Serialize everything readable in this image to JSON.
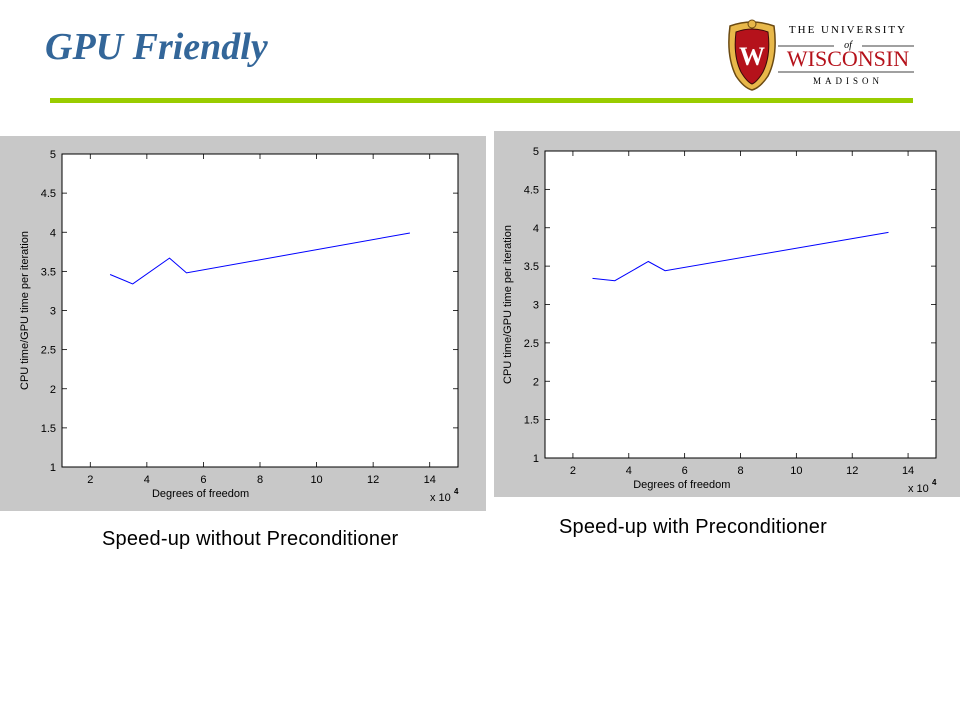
{
  "slide": {
    "title": "GPU Friendly",
    "logo": {
      "line1": "THE UNIVERSITY",
      "line2": "of",
      "line3": "WISCONSIN",
      "line4": "MADISON",
      "shield_letter": "W"
    },
    "colors": {
      "title": "#336699",
      "rule": "#99cc00",
      "crest": "#b5121b",
      "line": "#0000ff"
    }
  },
  "captions": {
    "left": "Speed-up without Preconditioner",
    "right": "Speed-up with Preconditioner"
  },
  "chart_data": [
    {
      "type": "line",
      "xlabel": "Degrees of freedom",
      "ylabel": "CPU time/GPU time per iteration",
      "x_multiplier": "x 10",
      "x_multiplier_exp": "4",
      "xlim": [
        1,
        15
      ],
      "ylim": [
        1,
        5
      ],
      "xticks": [
        2,
        4,
        6,
        8,
        10,
        12,
        14
      ],
      "yticks": [
        1,
        1.5,
        2,
        2.5,
        3,
        3.5,
        4,
        4.5,
        5
      ],
      "ytick_labels": [
        "1",
        "1.5",
        "2",
        "2.5",
        "3",
        "3.5",
        "4",
        "4.5",
        "5"
      ],
      "grid": false,
      "series": [
        {
          "color": "#0000ff",
          "x": [
            2.7,
            3.5,
            4.8,
            5.4,
            13.3
          ],
          "y": [
            3.46,
            3.34,
            3.67,
            3.48,
            3.99
          ]
        }
      ]
    },
    {
      "type": "line",
      "xlabel": "Degrees of freedom",
      "ylabel": "CPU time/GPU time per iteration",
      "x_multiplier": "x 10",
      "x_multiplier_exp": "4",
      "xlim": [
        1,
        15
      ],
      "ylim": [
        1,
        5
      ],
      "xticks": [
        2,
        4,
        6,
        8,
        10,
        12,
        14
      ],
      "yticks": [
        1,
        1.5,
        2,
        2.5,
        3,
        3.5,
        4,
        4.5,
        5
      ],
      "ytick_labels": [
        "1",
        "1.5",
        "2",
        "2.5",
        "3",
        "3.5",
        "4",
        "4.5",
        "5"
      ],
      "grid": false,
      "series": [
        {
          "color": "#0000ff",
          "x": [
            2.7,
            3.5,
            4.7,
            5.3,
            13.3
          ],
          "y": [
            3.34,
            3.31,
            3.56,
            3.44,
            3.94
          ]
        }
      ]
    }
  ]
}
